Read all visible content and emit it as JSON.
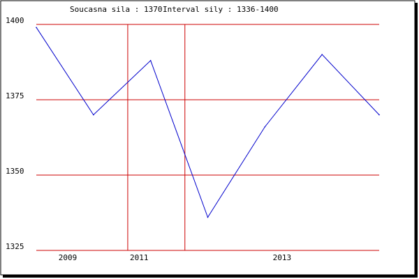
{
  "header": {
    "current_label": "Soucasna sila : 1370",
    "interval_label": "Interval sily : 1336-1400"
  },
  "chart_data": {
    "type": "line",
    "title": "",
    "xlabel": "",
    "ylabel": "",
    "ylim": [
      1325,
      1400
    ],
    "y_ticks": [
      1325,
      1350,
      1375,
      1400
    ],
    "x_ticks": [
      {
        "label": "2009",
        "x": 0.4
      },
      {
        "label": "2011",
        "x": 2.9
      },
      {
        "label": "2013",
        "x": 7.9
      }
    ],
    "vertical_gridlines_x": [
      2.5,
      4.5
    ],
    "xlim": [
      -0.7,
      11.3
    ],
    "series": [
      {
        "color": "#0000cc",
        "x": [
          -0.7,
          1.3,
          3.3,
          5.3,
          7.3,
          9.3,
          11.3
        ],
        "values": [
          1399,
          1370,
          1388,
          1336,
          1366,
          1390,
          1370
        ]
      }
    ],
    "grid_color": "#cc0000",
    "grid": true
  }
}
